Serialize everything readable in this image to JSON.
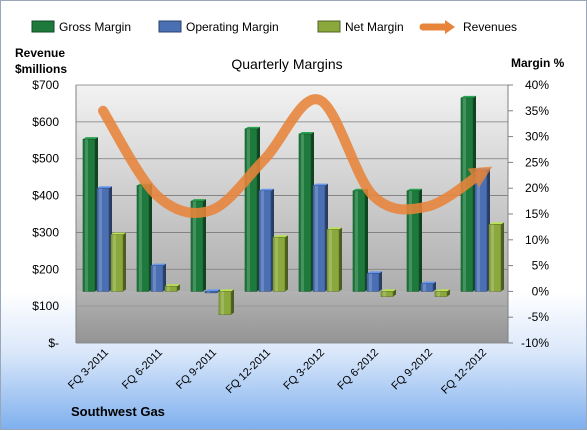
{
  "chart_data": {
    "type": "bar",
    "title": "Quarterly Margins",
    "categories": [
      "FQ 3-2011",
      "FQ 6-2011",
      "FQ 9-2011",
      "FQ 12-2011",
      "FQ 3-2012",
      "FQ 6-2012",
      "FQ 9-2012",
      "FQ 12-2012"
    ],
    "series": [
      {
        "name": "Gross Margin",
        "axis": "right",
        "unit": "%",
        "color": "#1e7a3c",
        "values": [
          29.5,
          20.5,
          17.5,
          31.5,
          30.5,
          19.5,
          19.5,
          37.5
        ]
      },
      {
        "name": "Operating Margin",
        "axis": "right",
        "unit": "%",
        "color": "#4a6fb3",
        "values": [
          20.0,
          5.0,
          0.0,
          19.5,
          20.5,
          3.5,
          1.5,
          23.5
        ]
      },
      {
        "name": "Net Margin",
        "axis": "right",
        "unit": "%",
        "color": "#8aa83c",
        "values": [
          11.0,
          1.0,
          -4.5,
          10.5,
          12.0,
          -1.0,
          -1.0,
          13.0
        ]
      },
      {
        "name": "Revenues",
        "axis": "left",
        "unit": "$millions",
        "type": "line",
        "color": "#e8843a",
        "values": [
          630,
          400,
          360,
          500,
          660,
          400,
          370,
          460
        ]
      }
    ],
    "left_axis": {
      "label_line1": "Revenue",
      "label_line2": "$millions",
      "min": 0,
      "max": 700,
      "step": 100,
      "ticks": [
        "$-",
        "$100",
        "$200",
        "$300",
        "$400",
        "$500",
        "$600",
        "$700"
      ]
    },
    "right_axis": {
      "label": "Margin %",
      "min": -10,
      "max": 40,
      "step": 5,
      "ticks": [
        "-10%",
        "-5%",
        "0%",
        "5%",
        "10%",
        "15%",
        "20%",
        "25%",
        "30%",
        "35%",
        "40%"
      ]
    },
    "legend_position": "top",
    "grid": true,
    "footer": "Southwest Gas"
  }
}
